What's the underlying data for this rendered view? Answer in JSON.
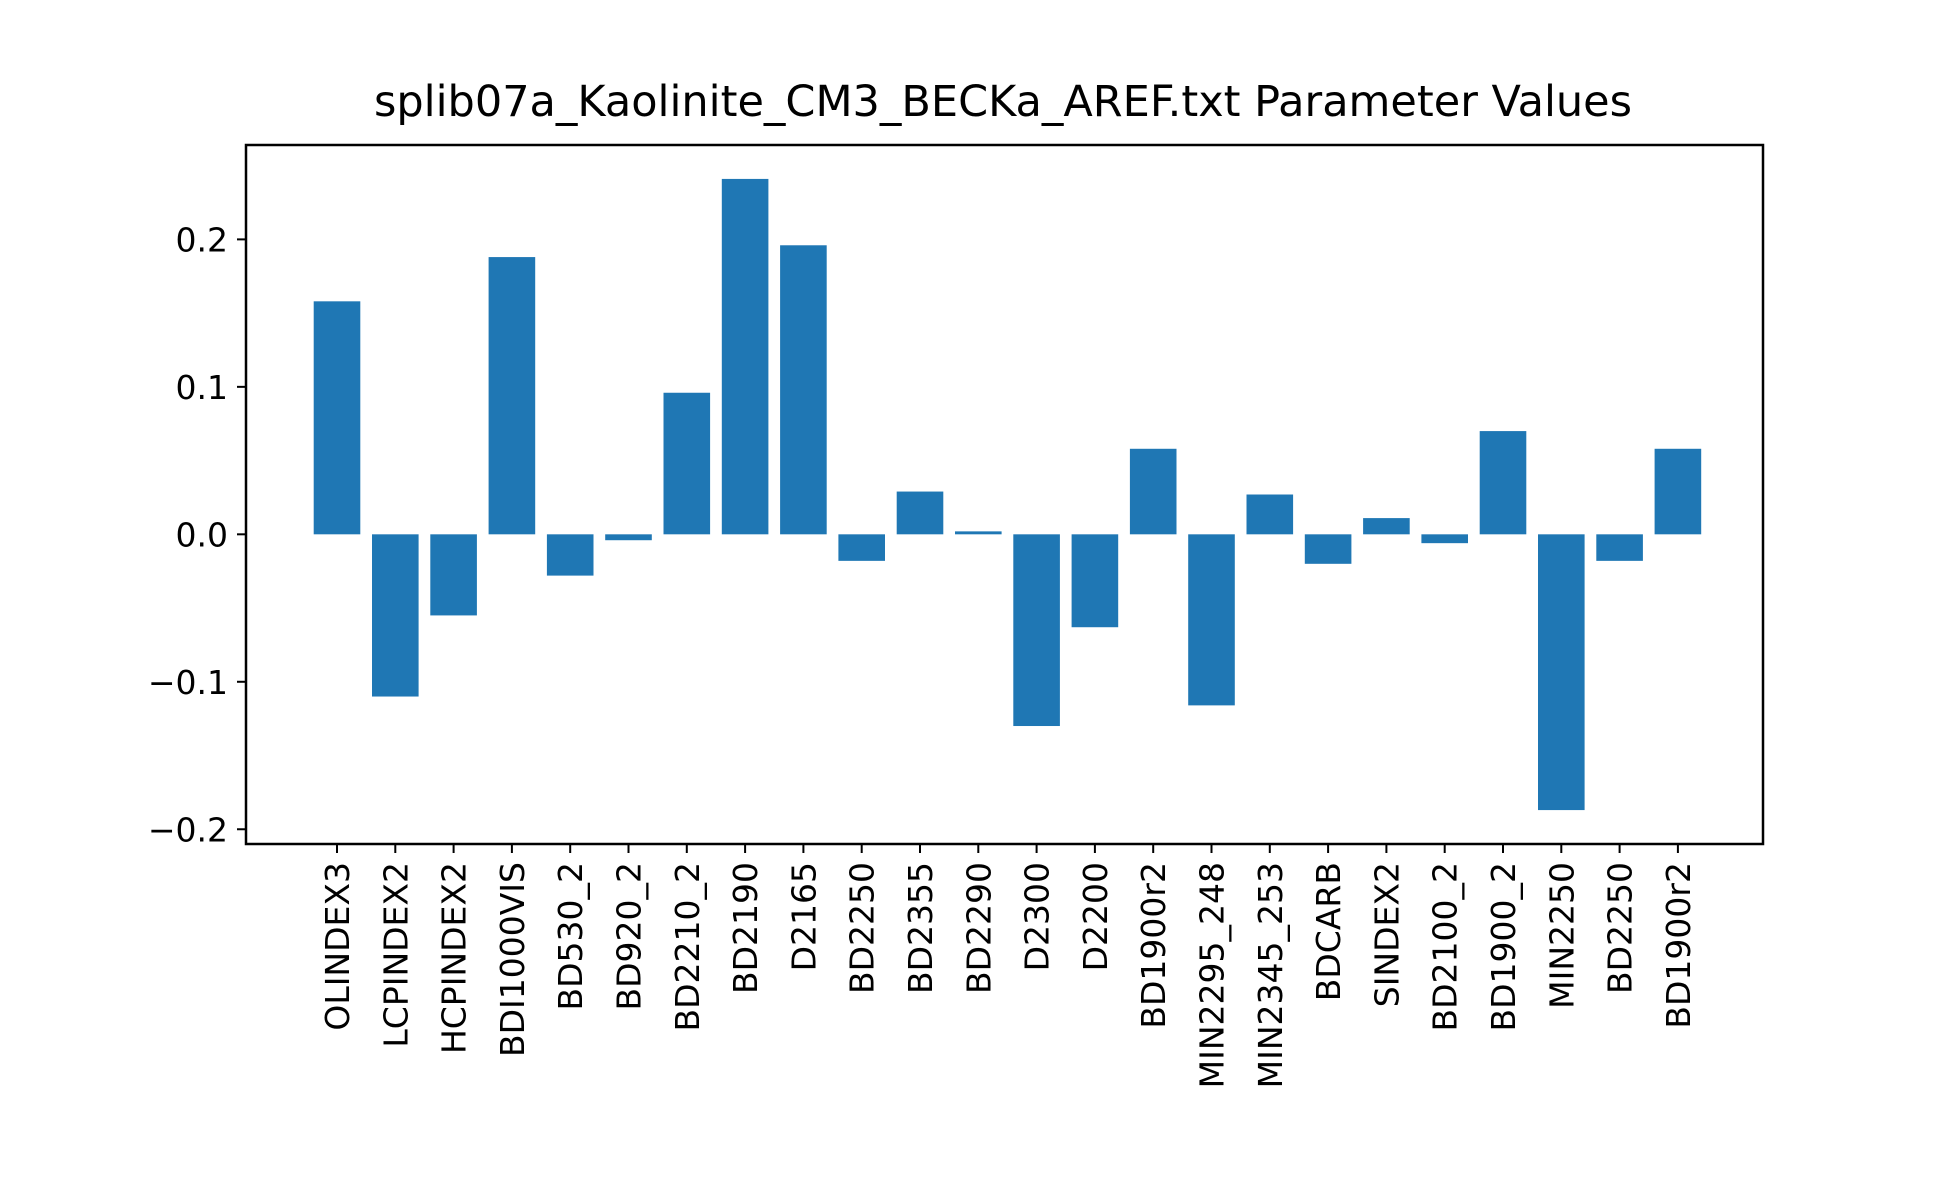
{
  "chart_data": {
    "type": "bar",
    "title": "splib07a_Kaolinite_CM3_BECKa_AREF.txt Parameter Values",
    "xlabel": "",
    "ylabel": "",
    "categories": [
      "OLINDEX3",
      "LCPINDEX2",
      "HCPINDEX2",
      "BDI1000VIS",
      "BD530_2",
      "BD920_2",
      "BD2210_2",
      "BD2190",
      "D2165",
      "BD2250",
      "BD2355",
      "BD2290",
      "D2300",
      "D2200",
      "BD1900r2",
      "MIN2295_248",
      "MIN2345_253",
      "BDCARB",
      "SINDEX2",
      "BD2100_2",
      "BD1900_2",
      "MIN2250",
      "BD2250",
      "BD1900r2"
    ],
    "values": [
      0.158,
      -0.11,
      -0.055,
      0.188,
      -0.028,
      -0.004,
      0.096,
      0.241,
      0.196,
      -0.018,
      0.029,
      0.002,
      -0.13,
      -0.063,
      0.058,
      -0.116,
      0.027,
      -0.02,
      0.011,
      -0.006,
      0.07,
      -0.187,
      -0.018,
      0.058
    ],
    "ylim": [
      -0.21,
      0.264
    ],
    "yticks": [
      -0.2,
      -0.1,
      0.0,
      0.1,
      0.2
    ],
    "ytick_labels": [
      "−0.2",
      "−0.1",
      "0.0",
      "0.1",
      "0.2"
    ],
    "bar_color": "#1f77b4",
    "grid": false,
    "legend": "none"
  }
}
